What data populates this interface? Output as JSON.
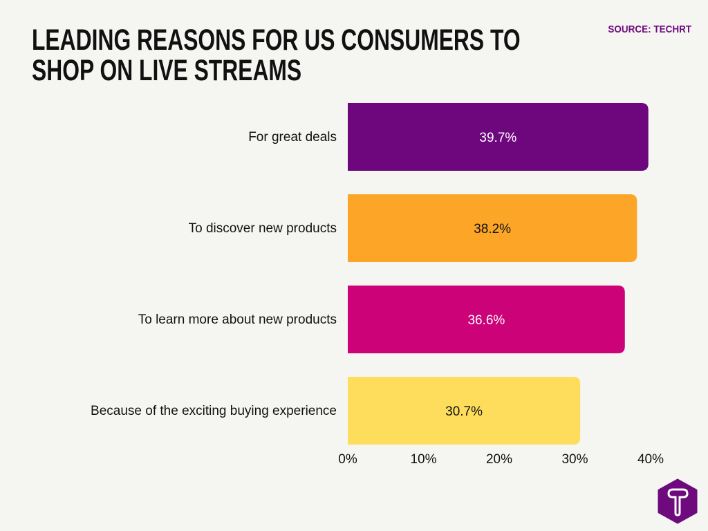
{
  "chart_data": {
    "type": "bar",
    "orientation": "horizontal",
    "title": "LEADING REASONS FOR US CONSUMERS TO SHOP ON LIVE STREAMS",
    "title_lines": [
      "LEADING REASONS FOR US CONSUMERS TO",
      "SHOP ON LIVE STREAMS"
    ],
    "source": "SOURCE: TECHRT",
    "categories": [
      "For great deals",
      "To discover new products",
      "To learn more about new products",
      "Because of the exciting buying experience"
    ],
    "values": [
      39.7,
      38.2,
      36.6,
      30.7
    ],
    "value_labels": [
      "39.7%",
      "38.2%",
      "36.6%",
      "30.7%"
    ],
    "colors": [
      "#6e077e",
      "#fca527",
      "#cc0278",
      "#fedd5c"
    ],
    "label_colors": [
      "#ffffff",
      "#111111",
      "#ffffff",
      "#111111"
    ],
    "xlim": [
      0,
      40
    ],
    "xticks": [
      0,
      10,
      20,
      30,
      40
    ],
    "xtick_labels": [
      "0%",
      "10%",
      "20%",
      "30%",
      "40%"
    ],
    "grid": false,
    "legend": "none"
  },
  "logo": {
    "letter": "T",
    "color": "#6e0a7e"
  }
}
